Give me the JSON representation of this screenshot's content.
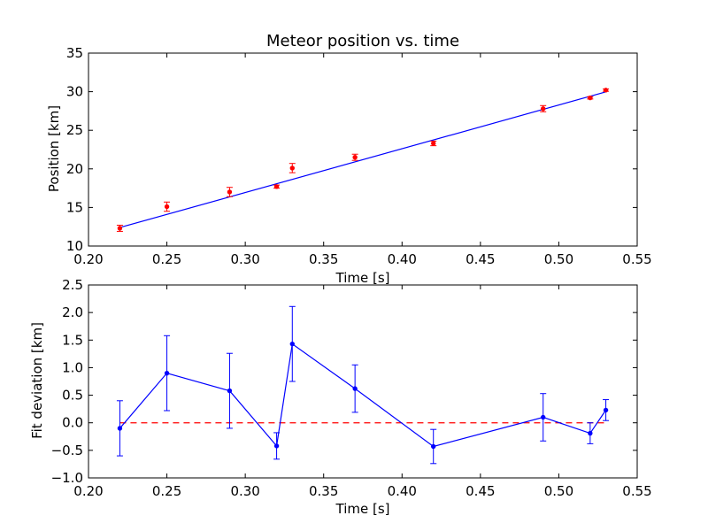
{
  "chart_data": [
    {
      "type": "scatter",
      "title": "Meteor position vs. time",
      "xlabel": "Time [s]",
      "ylabel": "Position [km]",
      "xlim": [
        0.2,
        0.55
      ],
      "ylim": [
        10,
        35
      ],
      "xticks": [
        "0.20",
        "0.25",
        "0.30",
        "0.35",
        "0.40",
        "0.45",
        "0.50",
        "0.55"
      ],
      "yticks": [
        "10",
        "15",
        "20",
        "25",
        "30",
        "35"
      ],
      "grid": false,
      "points": {
        "x": [
          0.22,
          0.25,
          0.29,
          0.32,
          0.33,
          0.37,
          0.42,
          0.49,
          0.52,
          0.53
        ],
        "y": [
          12.3,
          15.1,
          17.0,
          17.7,
          20.1,
          21.5,
          23.3,
          27.8,
          29.2,
          30.2
        ],
        "yerr": [
          0.4,
          0.6,
          0.6,
          0.2,
          0.6,
          0.4,
          0.3,
          0.4,
          0.15,
          0.15
        ],
        "color": "#ff0000",
        "ecolor": "#ff0000"
      },
      "fit_line": {
        "x": [
          0.22,
          0.53
        ],
        "y": [
          12.4,
          29.98
        ],
        "color": "#0000ff"
      }
    },
    {
      "type": "line",
      "xlabel": "Time [s]",
      "ylabel": "Fit deviation [km]",
      "xlim": [
        0.2,
        0.55
      ],
      "ylim": [
        -1.0,
        2.5
      ],
      "xticks": [
        "0.20",
        "0.25",
        "0.30",
        "0.35",
        "0.40",
        "0.45",
        "0.50",
        "0.55"
      ],
      "yticks": [
        "−1.0",
        "−0.5",
        "0.0",
        "0.5",
        "1.0",
        "1.5",
        "2.0",
        "2.5"
      ],
      "grid": false,
      "series": [
        {
          "x": [
            0.22,
            0.25,
            0.29,
            0.32,
            0.33,
            0.37,
            0.42,
            0.49,
            0.52,
            0.53
          ],
          "y": [
            -0.1,
            0.9,
            0.58,
            -0.42,
            1.43,
            0.62,
            -0.43,
            0.1,
            -0.19,
            0.23
          ],
          "yerr": [
            0.5,
            0.68,
            0.68,
            0.24,
            0.68,
            0.43,
            0.31,
            0.43,
            0.19,
            0.19
          ],
          "color": "#0000ff"
        }
      ],
      "reference_line": {
        "y": 0.0,
        "color": "#ff0000",
        "style": "dashed"
      }
    }
  ]
}
